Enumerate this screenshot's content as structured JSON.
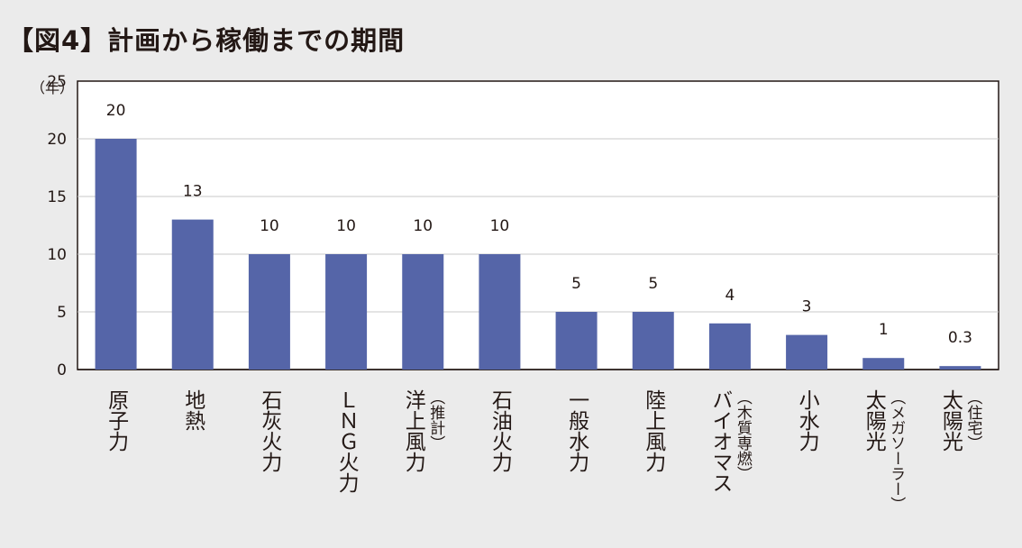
{
  "chart_data": {
    "type": "bar",
    "title": "【図4】計画から稼働までの期間",
    "ylabel": "（年）",
    "ylim": [
      0,
      25
    ],
    "yticks": [
      0,
      5,
      10,
      15,
      20,
      25
    ],
    "grid": true,
    "bar_color": "#5565a8",
    "categories": [
      {
        "name": "原子力",
        "sub": ""
      },
      {
        "name": "地熱",
        "sub": ""
      },
      {
        "name": "石灰火力",
        "sub": ""
      },
      {
        "name": "ＬＮＧ火力",
        "sub": ""
      },
      {
        "name": "洋上風力",
        "sub": "（推計）"
      },
      {
        "name": "石油火力",
        "sub": ""
      },
      {
        "name": "一般水力",
        "sub": ""
      },
      {
        "name": "陸上風力",
        "sub": ""
      },
      {
        "name": "バイオマス",
        "sub": "（木質専燃）"
      },
      {
        "name": "小水力",
        "sub": ""
      },
      {
        "name": "太陽光",
        "sub": "（メガソーラー）"
      },
      {
        "name": "太陽光",
        "sub": "（住宅）"
      }
    ],
    "values": [
      20,
      13,
      10,
      10,
      10,
      10,
      5,
      5,
      4,
      3,
      1,
      0.3
    ],
    "value_labels": [
      "20",
      "13",
      "10",
      "10",
      "10",
      "10",
      "5",
      "5",
      "4",
      "3",
      "1",
      "0.3"
    ]
  }
}
